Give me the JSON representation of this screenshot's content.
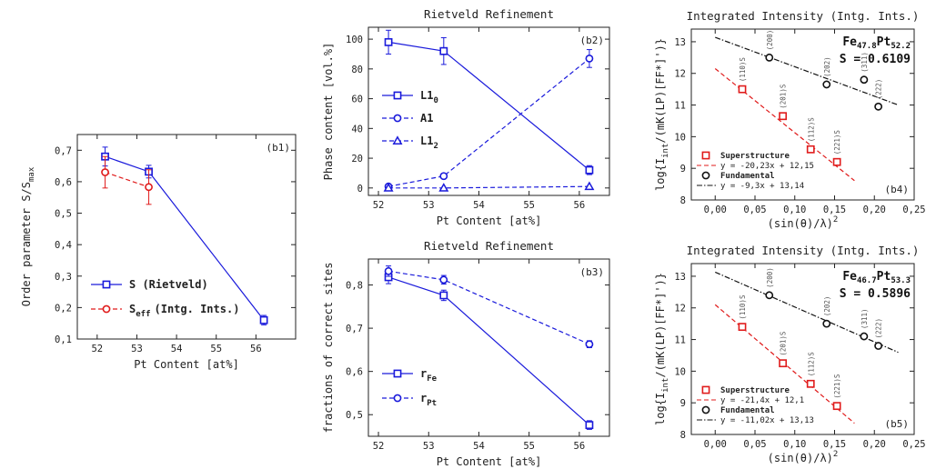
{
  "chart_data": [
    {
      "id": "b1",
      "type": "line",
      "tag": "(b1)",
      "title": "",
      "xlabel": "Pt Content [at%]",
      "ylabel": "Order parameter S/S",
      "ylabel_sub": "max",
      "xlim": [
        51.5,
        57
      ],
      "ylim": [
        0.1,
        0.75
      ],
      "xticks": [
        52,
        53,
        54,
        55,
        56
      ],
      "xtick_labels": [
        "52",
        "53",
        "54",
        "55",
        "56"
      ],
      "yticks": [
        0.1,
        0.2,
        0.3,
        0.4,
        0.5,
        0.6,
        0.7
      ],
      "ytick_labels": [
        "0,1",
        "0,2",
        "0,3",
        "0,4",
        "0,5",
        "0,6",
        "0,7"
      ],
      "legend": [
        {
          "label": "S (Rietveld)",
          "sub": "",
          "tail": "",
          "color": "#1a1adb",
          "marker": "square",
          "dash": "solid"
        },
        {
          "label": "S",
          "sub": "eff",
          "tail": "(Intg. Ints.)",
          "color": "#e01b1b",
          "marker": "circle",
          "dash": "dashed"
        }
      ],
      "series": [
        {
          "name": "S (Rietveld)",
          "color": "#1a1adb",
          "marker": "square",
          "dash": "solid",
          "x": [
            52.2,
            53.3,
            56.2
          ],
          "y": [
            0.68,
            0.632,
            0.16
          ],
          "err": [
            0.03,
            0.02,
            0.015
          ]
        },
        {
          "name": "S_eff (Intg. Ints.)",
          "color": "#e01b1b",
          "marker": "circle",
          "dash": "dashed",
          "x": [
            52.2,
            53.3
          ],
          "y": [
            0.63,
            0.583
          ],
          "err": [
            0.05,
            0.055
          ]
        }
      ]
    },
    {
      "id": "b2",
      "type": "line",
      "tag": "(b2)",
      "title": "Rietveld Refinement",
      "xlabel": "Pt Content [at%]",
      "ylabel": "Phase content [vol.%]",
      "xlim": [
        51.8,
        56.6
      ],
      "ylim": [
        -5,
        108
      ],
      "xticks": [
        52,
        53,
        54,
        55,
        56
      ],
      "xtick_labels": [
        "52",
        "53",
        "54",
        "55",
        "56"
      ],
      "yticks": [
        0,
        20,
        40,
        60,
        80,
        100
      ],
      "ytick_labels": [
        "0",
        "20",
        "40",
        "60",
        "80",
        "100"
      ],
      "legend": [
        {
          "label": "L1",
          "sub": "0",
          "color": "#1a1adb",
          "marker": "square",
          "dash": "solid"
        },
        {
          "label": "A1",
          "sub": "",
          "color": "#1a1adb",
          "marker": "circle",
          "dash": "dashed"
        },
        {
          "label": "L1",
          "sub": "2",
          "color": "#1a1adb",
          "marker": "triangle",
          "dash": "dashed"
        }
      ],
      "series": [
        {
          "name": "L1_0",
          "color": "#1a1adb",
          "marker": "square",
          "dash": "solid",
          "x": [
            52.2,
            53.3,
            56.2
          ],
          "y": [
            98,
            92,
            12
          ],
          "err": [
            8,
            9,
            3
          ]
        },
        {
          "name": "A1",
          "color": "#1a1adb",
          "marker": "circle",
          "dash": "dashed",
          "x": [
            52.2,
            53.3,
            56.2
          ],
          "y": [
            1,
            8,
            87
          ],
          "err": [
            1,
            1,
            6
          ]
        },
        {
          "name": "L1_2",
          "color": "#1a1adb",
          "marker": "triangle",
          "dash": "dashed",
          "x": [
            52.2,
            53.3,
            56.2
          ],
          "y": [
            0,
            0,
            1
          ],
          "err": [
            0,
            0,
            0
          ]
        }
      ]
    },
    {
      "id": "b3",
      "type": "line",
      "tag": "(b3)",
      "title": "Rietveld Refinement",
      "xlabel": "Pt Content [at%]",
      "ylabel": "fractions of correct sites",
      "xlim": [
        51.8,
        56.6
      ],
      "ylim": [
        0.45,
        0.86
      ],
      "xticks": [
        52,
        53,
        54,
        55,
        56
      ],
      "xtick_labels": [
        "52",
        "53",
        "54",
        "55",
        "56"
      ],
      "yticks": [
        0.5,
        0.6,
        0.7,
        0.8
      ],
      "ytick_labels": [
        "0,5",
        "0,6",
        "0,7",
        "0,8"
      ],
      "legend": [
        {
          "label": "r",
          "sub": "Fe",
          "color": "#1a1adb",
          "marker": "square",
          "dash": "solid"
        },
        {
          "label": "r",
          "sub": "Pt",
          "color": "#1a1adb",
          "marker": "circle",
          "dash": "dashed"
        }
      ],
      "series": [
        {
          "name": "r_Fe",
          "color": "#1a1adb",
          "marker": "square",
          "dash": "solid",
          "x": [
            52.2,
            53.3,
            56.2
          ],
          "y": [
            0.818,
            0.776,
            0.476
          ],
          "err": [
            0.015,
            0.012,
            0.01
          ]
        },
        {
          "name": "r_Pt",
          "color": "#1a1adb",
          "marker": "circle",
          "dash": "dashed",
          "x": [
            52.2,
            53.3,
            56.2
          ],
          "y": [
            0.832,
            0.812,
            0.663
          ],
          "err": [
            0.012,
            0.01,
            0.008
          ]
        }
      ]
    },
    {
      "id": "b4",
      "type": "scatter",
      "tag": "(b4)",
      "title": "Integrated Intensity (Intg. Ints.)",
      "composition": {
        "el1": "Fe",
        "n1": "47.8",
        "el2": "Pt",
        "n2": "52.2"
      },
      "s_value": "S = 0.6109",
      "xlabel": "(sin(θ)/λ)",
      "xlabel_sup": "2",
      "ylabel": "log{I",
      "ylabel_sub": "int",
      "ylabel_tail": "/(mK(LP)[FF*]')}",
      "xlim": [
        -0.03,
        0.25
      ],
      "ylim": [
        8,
        13.4
      ],
      "xticks": [
        0.0,
        0.05,
        0.1,
        0.15,
        0.2,
        0.25
      ],
      "xtick_labels": [
        "0,00",
        "0,05",
        "0,10",
        "0,15",
        "0,20",
        "0,25"
      ],
      "yticks": [
        8,
        9,
        10,
        11,
        12,
        13
      ],
      "ytick_labels": [
        "8",
        "9",
        "10",
        "11",
        "12",
        "13"
      ],
      "legend": [
        {
          "label": "Superstructure",
          "color": "#e01b1b",
          "marker": "square"
        },
        {
          "label": "y = -20,23x + 12,15",
          "color": "#e01b1b",
          "dash": "dashed"
        },
        {
          "label": "Fundamental",
          "color": "#111111",
          "marker": "circle"
        },
        {
          "label": "y = -9,3x + 13,14",
          "color": "#111111",
          "dash": "dashdot"
        }
      ],
      "series": [
        {
          "name": "Superstructure",
          "color": "#e01b1b",
          "marker": "square",
          "x": [
            0.034,
            0.085,
            0.12,
            0.153
          ],
          "y": [
            11.5,
            10.65,
            9.6,
            9.2
          ],
          "labels": [
            "(110)S",
            "(201)S",
            "(112)S",
            "(221)S"
          ]
        },
        {
          "name": "Fundamental",
          "color": "#111111",
          "marker": "circle",
          "x": [
            0.068,
            0.14,
            0.187,
            0.205
          ],
          "y": [
            12.5,
            11.65,
            11.8,
            10.95
          ],
          "labels": [
            "(200)",
            "(202)",
            "(311)",
            "(222)"
          ]
        }
      ],
      "fits": [
        {
          "color": "#e01b1b",
          "dash": "dashed",
          "slope": -20.23,
          "intercept": 12.15,
          "x0": 0.0,
          "x1": 0.175
        },
        {
          "color": "#111111",
          "dash": "dashdot",
          "slope": -9.3,
          "intercept": 13.14,
          "x0": 0.0,
          "x1": 0.23
        }
      ]
    },
    {
      "id": "b5",
      "type": "scatter",
      "tag": "(b5)",
      "title": "Integrated Intensity (Intg. Ints.)",
      "composition": {
        "el1": "Fe",
        "n1": "46.7",
        "el2": "Pt",
        "n2": "53.3"
      },
      "s_value": "S = 0.5896",
      "xlabel": "(sin(θ)/λ)",
      "xlabel_sup": "2",
      "ylabel": "log{I",
      "ylabel_sub": "int",
      "ylabel_tail": "/(mK(LP)[FF*]')}",
      "xlim": [
        -0.03,
        0.25
      ],
      "ylim": [
        8,
        13.4
      ],
      "xticks": [
        0.0,
        0.05,
        0.1,
        0.15,
        0.2,
        0.25
      ],
      "xtick_labels": [
        "0,00",
        "0,05",
        "0,10",
        "0,15",
        "0,20",
        "0,25"
      ],
      "yticks": [
        8,
        9,
        10,
        11,
        12,
        13
      ],
      "ytick_labels": [
        "8",
        "9",
        "10",
        "11",
        "12",
        "13"
      ],
      "legend": [
        {
          "label": "Superstructure",
          "color": "#e01b1b",
          "marker": "square"
        },
        {
          "label": "y = -21,4x + 12,1",
          "color": "#e01b1b",
          "dash": "dashed"
        },
        {
          "label": "Fundamental",
          "color": "#111111",
          "marker": "circle"
        },
        {
          "label": "y = -11,02x + 13,13",
          "color": "#111111",
          "dash": "dashdot"
        }
      ],
      "series": [
        {
          "name": "Superstructure",
          "color": "#e01b1b",
          "marker": "square",
          "x": [
            0.034,
            0.085,
            0.12,
            0.153
          ],
          "y": [
            11.4,
            10.25,
            9.6,
            8.9
          ],
          "labels": [
            "(110)S",
            "(201)S",
            "(112)S",
            "(221)S"
          ]
        },
        {
          "name": "Fundamental",
          "color": "#111111",
          "marker": "circle",
          "x": [
            0.068,
            0.14,
            0.187,
            0.205
          ],
          "y": [
            12.4,
            11.5,
            11.1,
            10.8
          ],
          "labels": [
            "(200)",
            "(202)",
            "(311)",
            "(222)"
          ]
        }
      ],
      "fits": [
        {
          "color": "#e01b1b",
          "dash": "dashed",
          "slope": -21.4,
          "intercept": 12.1,
          "x0": 0.0,
          "x1": 0.175
        },
        {
          "color": "#111111",
          "dash": "dashdot",
          "slope": -11.02,
          "intercept": 13.13,
          "x0": 0.0,
          "x1": 0.23
        }
      ]
    }
  ]
}
